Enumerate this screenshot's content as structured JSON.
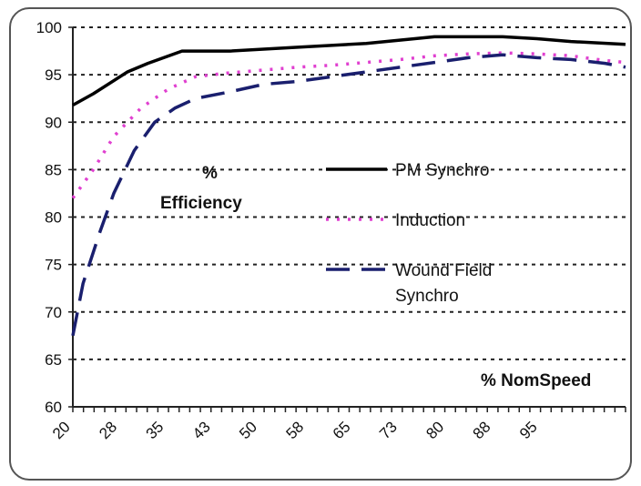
{
  "chart_data": {
    "type": "line",
    "annotations": {
      "ylabel_line1": "%",
      "ylabel_line2": "Efficiency",
      "xlabel": "% NomSpeed"
    },
    "ylim": [
      60,
      100
    ],
    "yticks": [
      60,
      65,
      70,
      75,
      80,
      85,
      90,
      95,
      100
    ],
    "xlim": [
      22,
      103
    ],
    "xticks": [
      "20",
      "28",
      "35",
      "43",
      "50",
      "58",
      "65",
      "73",
      "80",
      "88",
      "95"
    ],
    "grid": "horizontal-dotted",
    "legend_position": "center-right",
    "series": [
      {
        "name": "PM Synchro",
        "style": "solid",
        "color": "#000000",
        "x": [
          22,
          25,
          30,
          33,
          38,
          45,
          55,
          65,
          75,
          80,
          85,
          90,
          95,
          103
        ],
        "y": [
          91.8,
          93,
          95.3,
          96.2,
          97.5,
          97.5,
          97.9,
          98.3,
          99,
          99,
          99,
          98.8,
          98.5,
          98.2
        ]
      },
      {
        "name": "Induction",
        "style": "dotted",
        "color": "#e040d0",
        "x": [
          22,
          25,
          28,
          32,
          36,
          40,
          45,
          50,
          55,
          60,
          65,
          70,
          75,
          80,
          85,
          90,
          95,
          100,
          103
        ],
        "y": [
          82,
          85,
          88.5,
          91.5,
          93.5,
          94.8,
          95.2,
          95.5,
          95.8,
          96,
          96.3,
          96.6,
          97,
          97.2,
          97.3,
          97.2,
          97,
          96.5,
          96.3
        ]
      },
      {
        "name": "Wound Field\nSynchro",
        "style": "dashed",
        "color": "#1a1f6e",
        "x": [
          22,
          23.5,
          26,
          28,
          31,
          34,
          37,
          40,
          45,
          50,
          55,
          60,
          65,
          70,
          75,
          80,
          85,
          90,
          95,
          100,
          103
        ],
        "y": [
          67.5,
          73,
          78.5,
          82.5,
          87,
          90,
          91.5,
          92.5,
          93.2,
          94,
          94.3,
          94.8,
          95.3,
          95.8,
          96.3,
          96.8,
          97.1,
          96.8,
          96.6,
          96.2,
          95.8
        ]
      }
    ]
  }
}
